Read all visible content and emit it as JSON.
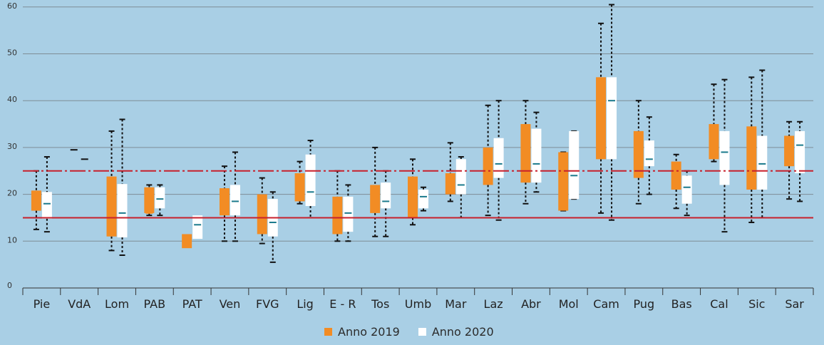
{
  "chart_data": {
    "type": "box",
    "title": "",
    "xlabel": "",
    "ylabel": "",
    "ylim": [
      0,
      62
    ],
    "yticks": [
      0,
      10,
      20,
      30,
      40,
      50,
      60
    ],
    "grid": true,
    "legend_position": "bottom",
    "categories": [
      "Pie",
      "VdA",
      "Lom",
      "PAB",
      "PAT",
      "Ven",
      "FVG",
      "Lig",
      "E - R",
      "Tos",
      "Umb",
      "Mar",
      "Laz",
      "Abr",
      "Mol",
      "Cam",
      "Pug",
      "Bas",
      "Cal",
      "Sic",
      "Sar"
    ],
    "reference_lines": [
      {
        "value": 25,
        "style": "dash-dot",
        "color": "#c8202c"
      },
      {
        "value": 15,
        "style": "solid",
        "color": "#c8202c"
      }
    ],
    "series": [
      {
        "name": "Anno 2019",
        "color": "#f28c24",
        "boxes": [
          {
            "min": 12.5,
            "q1": 16.5,
            "median": 17.5,
            "q3": 20.8,
            "max": 25.0
          },
          {
            "min": null,
            "q1": null,
            "median": 29.5,
            "q3": null,
            "max": null
          },
          {
            "min": 8.0,
            "q1": 11.0,
            "median": 11.5,
            "q3": 23.8,
            "max": 33.5
          },
          {
            "min": 15.5,
            "q1": 16.0,
            "median": 16.0,
            "q3": 21.5,
            "max": 22.0
          },
          {
            "min": null,
            "q1": 8.5,
            "median": null,
            "q3": 11.5,
            "max": null
          },
          {
            "min": 10.0,
            "q1": 15.5,
            "median": 16.0,
            "q3": 21.3,
            "max": 26.0
          },
          {
            "min": 9.5,
            "q1": 11.5,
            "median": 12.0,
            "q3": 20.0,
            "max": 23.5
          },
          {
            "min": 18.0,
            "q1": 18.5,
            "median": 19.0,
            "q3": 24.5,
            "max": 27.0
          },
          {
            "min": 10.0,
            "q1": 11.5,
            "median": 12.0,
            "q3": 19.5,
            "max": 25.0
          },
          {
            "min": 11.0,
            "q1": 16.0,
            "median": 16.5,
            "q3": 22.0,
            "max": 30.0
          },
          {
            "min": 13.5,
            "q1": 15.0,
            "median": 15.5,
            "q3": 23.8,
            "max": 27.5
          },
          {
            "min": 18.5,
            "q1": 20.0,
            "median": 20.5,
            "q3": 24.5,
            "max": 31.0
          },
          {
            "min": 15.5,
            "q1": 22.0,
            "median": 22.5,
            "q3": 30.0,
            "max": 39.0
          },
          {
            "min": 18.0,
            "q1": 22.5,
            "median": 23.0,
            "q3": 35.0,
            "max": 40.0
          },
          {
            "min": 16.5,
            "q1": 16.5,
            "median": 17.0,
            "q3": 29.0,
            "max": 29.0
          },
          {
            "min": 16.0,
            "q1": 27.5,
            "median": 28.0,
            "q3": 45.0,
            "max": 56.5
          },
          {
            "min": 18.0,
            "q1": 23.5,
            "median": 24.0,
            "q3": 33.5,
            "max": 40.0
          },
          {
            "min": 17.0,
            "q1": 21.0,
            "median": 21.5,
            "q3": 27.0,
            "max": 28.5
          },
          {
            "min": 27.0,
            "q1": 27.5,
            "median": 28.0,
            "q3": 35.0,
            "max": 43.5
          },
          {
            "min": 14.0,
            "q1": 21.0,
            "median": 21.5,
            "q3": 34.5,
            "max": 45.0
          },
          {
            "min": 19.0,
            "q1": 26.0,
            "median": 26.5,
            "q3": 32.5,
            "max": 35.5
          }
        ]
      },
      {
        "name": "Anno 2020",
        "color": "#ffffff",
        "median_color": "#1a7a8c",
        "boxes": [
          {
            "min": 12.0,
            "q1": 14.8,
            "median": 18.0,
            "q3": 20.5,
            "max": 28.0
          },
          {
            "min": null,
            "q1": null,
            "median": 27.5,
            "q3": null,
            "max": null
          },
          {
            "min": 7.0,
            "q1": 10.8,
            "median": 16.0,
            "q3": 22.2,
            "max": 36.0
          },
          {
            "min": 15.5,
            "q1": 17.0,
            "median": 19.0,
            "q3": 21.5,
            "max": 22.0
          },
          {
            "min": null,
            "q1": 10.5,
            "median": 13.5,
            "q3": 15.5,
            "max": null
          },
          {
            "min": 10.0,
            "q1": 15.5,
            "median": 18.5,
            "q3": 22.0,
            "max": 29.0
          },
          {
            "min": 5.5,
            "q1": 11.0,
            "median": 14.0,
            "q3": 19.0,
            "max": 20.5
          },
          {
            "min": 15.0,
            "q1": 17.5,
            "median": 20.5,
            "q3": 28.5,
            "max": 31.5
          },
          {
            "min": 10.0,
            "q1": 12.0,
            "median": 16.0,
            "q3": 19.5,
            "max": 22.0
          },
          {
            "min": 11.0,
            "q1": 17.0,
            "median": 18.5,
            "q3": 22.5,
            "max": 25.0
          },
          {
            "min": 16.5,
            "q1": 17.0,
            "median": 19.5,
            "q3": 21.0,
            "max": 21.5
          },
          {
            "min": 15.0,
            "q1": 20.0,
            "median": 22.0,
            "q3": 27.5,
            "max": 28.0
          },
          {
            "min": 14.5,
            "q1": 23.5,
            "median": 26.5,
            "q3": 32.0,
            "max": 40.0
          },
          {
            "min": 20.5,
            "q1": 22.5,
            "median": 26.5,
            "q3": 34.0,
            "max": 37.5
          },
          {
            "min": 19.0,
            "q1": 19.0,
            "median": 24.0,
            "q3": 33.5,
            "max": 33.5
          },
          {
            "min": 14.5,
            "q1": 27.5,
            "median": 40.0,
            "q3": 45.0,
            "max": 60.5
          },
          {
            "min": 20.0,
            "q1": 26.0,
            "median": 27.5,
            "q3": 31.5,
            "max": 36.5
          },
          {
            "min": 15.5,
            "q1": 18.0,
            "median": 21.5,
            "q3": 24.0,
            "max": 25.0
          },
          {
            "min": 12.0,
            "q1": 22.0,
            "median": 29.0,
            "q3": 33.5,
            "max": 44.5
          },
          {
            "min": 15.0,
            "q1": 21.0,
            "median": 26.5,
            "q3": 32.5,
            "max": 46.5
          },
          {
            "min": 18.5,
            "q1": 24.5,
            "median": 30.5,
            "q3": 33.5,
            "max": 35.5
          }
        ]
      }
    ]
  }
}
